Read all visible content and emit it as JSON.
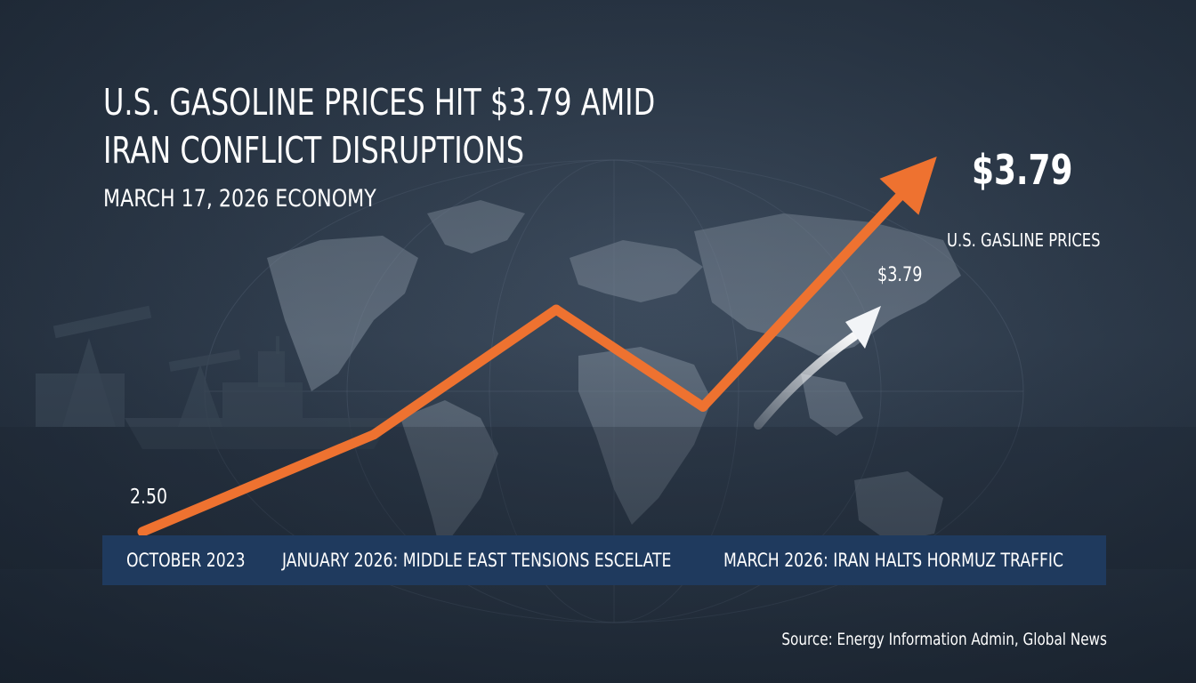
{
  "headline": {
    "line1": "U.S. GASOLINE PRICES HIT $3.79 AMID",
    "line2": "IRAN CONFLICT DISRUPTIONS"
  },
  "dateline": "MARCH 17, 2026 ECONOMY",
  "callouts": {
    "big_price": "$3.79",
    "big_label": "U.S. GASLINE PRICES",
    "small_price": "$3.79"
  },
  "timeline": {
    "items": [
      "OCTOBER 2023",
      "JANUARY 2026: MIDDLE EAST TENSIONS ESCELATE",
      "MARCH 2026: IRAN HALTS HORMUZ TRAFFIC"
    ]
  },
  "source": "Source: Energy Information Admin, Global News",
  "colors": {
    "accent": "#ee7230",
    "timeline_bar": "#1f3a5e",
    "background": "#2e3b4b"
  },
  "chart_data": {
    "type": "line",
    "title": "",
    "xlabel": "",
    "ylabel": "",
    "start_label": "2.50",
    "series": [
      {
        "values": [
          2.5,
          2.85,
          3.3,
          2.95,
          3.79
        ]
      }
    ],
    "ylim": [
      2.5,
      3.79
    ],
    "grid": false,
    "legend": "none"
  }
}
